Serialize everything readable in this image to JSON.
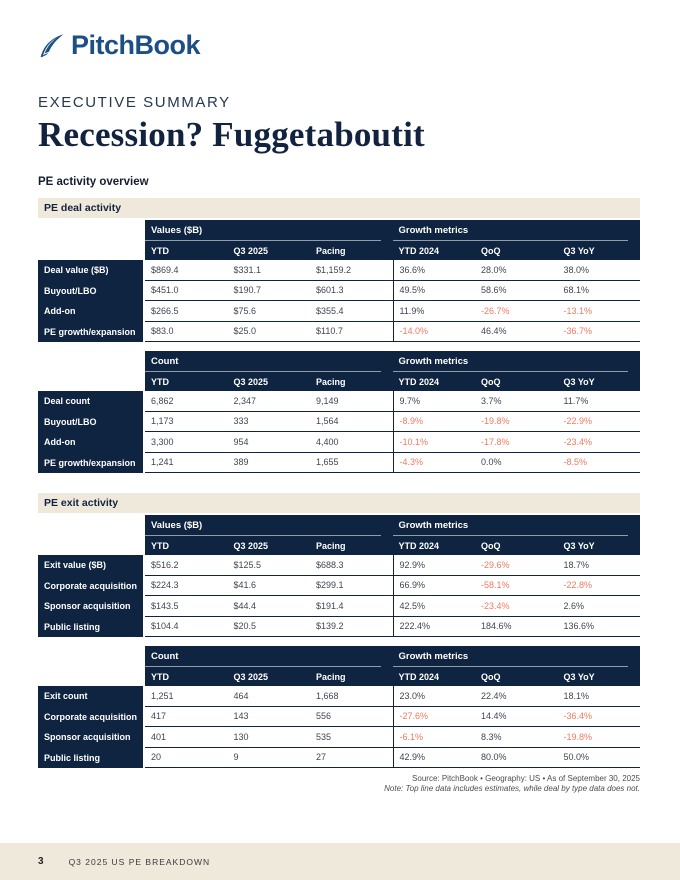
{
  "header": {
    "logo_text": "PitchBook",
    "kicker": "EXECUTIVE SUMMARY",
    "title": "Recession? Fuggetaboutit",
    "subtitle": "PE activity overview"
  },
  "sections": [
    {
      "label": "PE deal activity",
      "tables": [
        {
          "group1": "Values ($B)",
          "group2": "Growth metrics",
          "columns": [
            "YTD",
            "Q3 2025",
            "Pacing",
            "YTD 2024",
            "QoQ",
            "Q3 YoY"
          ],
          "rows": [
            {
              "label": "Deal value ($B)",
              "values": [
                "$869.4",
                "$331.1",
                "$1,159.2",
                "36.6%",
                "28.0%",
                "38.0%"
              ]
            },
            {
              "label": "Buyout/LBO",
              "values": [
                "$451.0",
                "$190.7",
                "$601.3",
                "49.5%",
                "58.6%",
                "68.1%"
              ]
            },
            {
              "label": "Add-on",
              "values": [
                "$266.5",
                "$75.6",
                "$355.4",
                "11.9%",
                "-26.7%",
                "-13.1%"
              ]
            },
            {
              "label": "PE growth/expansion",
              "values": [
                "$83.0",
                "$25.0",
                "$110.7",
                "-14.0%",
                "46.4%",
                "-36.7%"
              ]
            }
          ]
        },
        {
          "group1": "Count",
          "group2": "Growth metrics",
          "columns": [
            "YTD",
            "Q3 2025",
            "Pacing",
            "YTD 2024",
            "QoQ",
            "Q3 YoY"
          ],
          "rows": [
            {
              "label": "Deal count",
              "values": [
                "6,862",
                "2,347",
                "9,149",
                "9.7%",
                "3.7%",
                "11.7%"
              ]
            },
            {
              "label": "Buyout/LBO",
              "values": [
                "1,173",
                "333",
                "1,564",
                "-8.9%",
                "-19.8%",
                "-22.9%"
              ]
            },
            {
              "label": "Add-on",
              "values": [
                "3,300",
                "954",
                "4,400",
                "-10.1%",
                "-17.8%",
                "-23.4%"
              ]
            },
            {
              "label": "PE growth/expansion",
              "values": [
                "1,241",
                "389",
                "1,655",
                "-4.3%",
                "0.0%",
                "-8.5%"
              ]
            }
          ]
        }
      ]
    },
    {
      "label": "PE exit activity",
      "tables": [
        {
          "group1": "Values ($B)",
          "group2": "Growth metrics",
          "columns": [
            "YTD",
            "Q3 2025",
            "Pacing",
            "YTD 2024",
            "QoQ",
            "Q3 YoY"
          ],
          "rows": [
            {
              "label": "Exit value ($B)",
              "values": [
                "$516.2",
                "$125.5",
                "$688.3",
                "92.9%",
                "-29.6%",
                "18.7%"
              ]
            },
            {
              "label": "Corporate acquisition",
              "values": [
                "$224.3",
                "$41.6",
                "$299.1",
                "66.9%",
                "-58.1%",
                "-22.8%"
              ]
            },
            {
              "label": "Sponsor acquisition",
              "values": [
                "$143.5",
                "$44.4",
                "$191.4",
                "42.5%",
                "-23.4%",
                "2.6%"
              ]
            },
            {
              "label": "Public listing",
              "values": [
                "$104.4",
                "$20.5",
                "$139.2",
                "222.4%",
                "184.6%",
                "136.6%"
              ]
            }
          ]
        },
        {
          "group1": "Count",
          "group2": "Growth metrics",
          "columns": [
            "YTD",
            "Q3 2025",
            "Pacing",
            "YTD 2024",
            "QoQ",
            "Q3 YoY"
          ],
          "rows": [
            {
              "label": "Exit count",
              "values": [
                "1,251",
                "464",
                "1,668",
                "23.0%",
                "22.4%",
                "18.1%"
              ]
            },
            {
              "label": "Corporate acquisition",
              "values": [
                "417",
                "143",
                "556",
                "-27.6%",
                "14.4%",
                "-36.4%"
              ]
            },
            {
              "label": "Sponsor acquisition",
              "values": [
                "401",
                "130",
                "535",
                "-6.1%",
                "8.3%",
                "-19.8%"
              ]
            },
            {
              "label": "Public listing",
              "values": [
                "20",
                "9",
                "27",
                "42.9%",
                "80.0%",
                "50.0%"
              ]
            }
          ]
        }
      ]
    }
  ],
  "footnote": {
    "source": "Source: PitchBook  •  Geography: US  •  As of September 30, 2025",
    "note": "Note: Top line data includes estimates, while deal by type data does not."
  },
  "footer": {
    "page_number": "3",
    "label": "Q3 2025 US PE BREAKDOWN"
  },
  "colors": {
    "navy": "#0e2440",
    "beige": "#efe9dc",
    "negative": "#ee7a61",
    "logo_blue": "#1d4f87",
    "body_text": "#3f4551"
  }
}
